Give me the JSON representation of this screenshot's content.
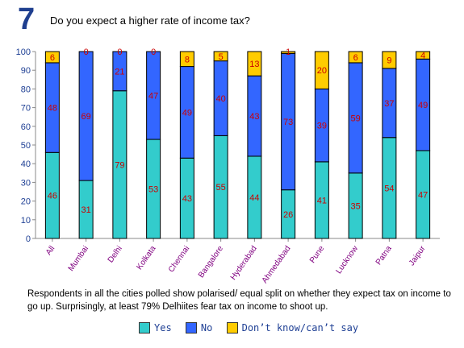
{
  "header": {
    "number": "7",
    "title": "Do you expect a higher rate of income tax?"
  },
  "chart_data": {
    "type": "bar",
    "stacked": true,
    "categories": [
      "All",
      "Mumbai",
      "Delhi",
      "Kolkata",
      "Chennai",
      "Bangalore",
      "Hyderabad",
      "Ahmedabad",
      "Pune",
      "Lucknow",
      "Patna",
      "Jaipur"
    ],
    "series": [
      {
        "name": "Yes",
        "color": "#33cccc",
        "values": [
          46,
          31,
          79,
          53,
          43,
          55,
          44,
          26,
          41,
          35,
          54,
          47
        ]
      },
      {
        "name": "No",
        "color": "#3366ff",
        "values": [
          48,
          69,
          21,
          47,
          49,
          40,
          43,
          73,
          39,
          59,
          37,
          49
        ]
      },
      {
        "name": "Don't know/can't say",
        "color": "#ffcc00",
        "values": [
          6,
          0,
          0,
          0,
          8,
          5,
          13,
          1,
          20,
          6,
          9,
          4
        ]
      }
    ],
    "ylim": [
      0,
      100
    ],
    "yticks": [
      0,
      10,
      20,
      30,
      40,
      50,
      60,
      70,
      80,
      90,
      100
    ],
    "xlabel": "",
    "ylabel": "",
    "grid": false,
    "label_color": "#cc0000",
    "legend_position": "bottom"
  },
  "caption": "Respondents in all the cities polled show polarised/ equal split on whether they expect tax on income to go up. Surprisingly, at least 79% Delhiites fear tax on income to shoot up.",
  "legend": {
    "items": [
      {
        "label": "Yes",
        "color": "#33cccc"
      },
      {
        "label": "No",
        "color": "#3366ff"
      },
      {
        "label": "Don’t know/can’t say",
        "color": "#ffcc00"
      }
    ]
  }
}
